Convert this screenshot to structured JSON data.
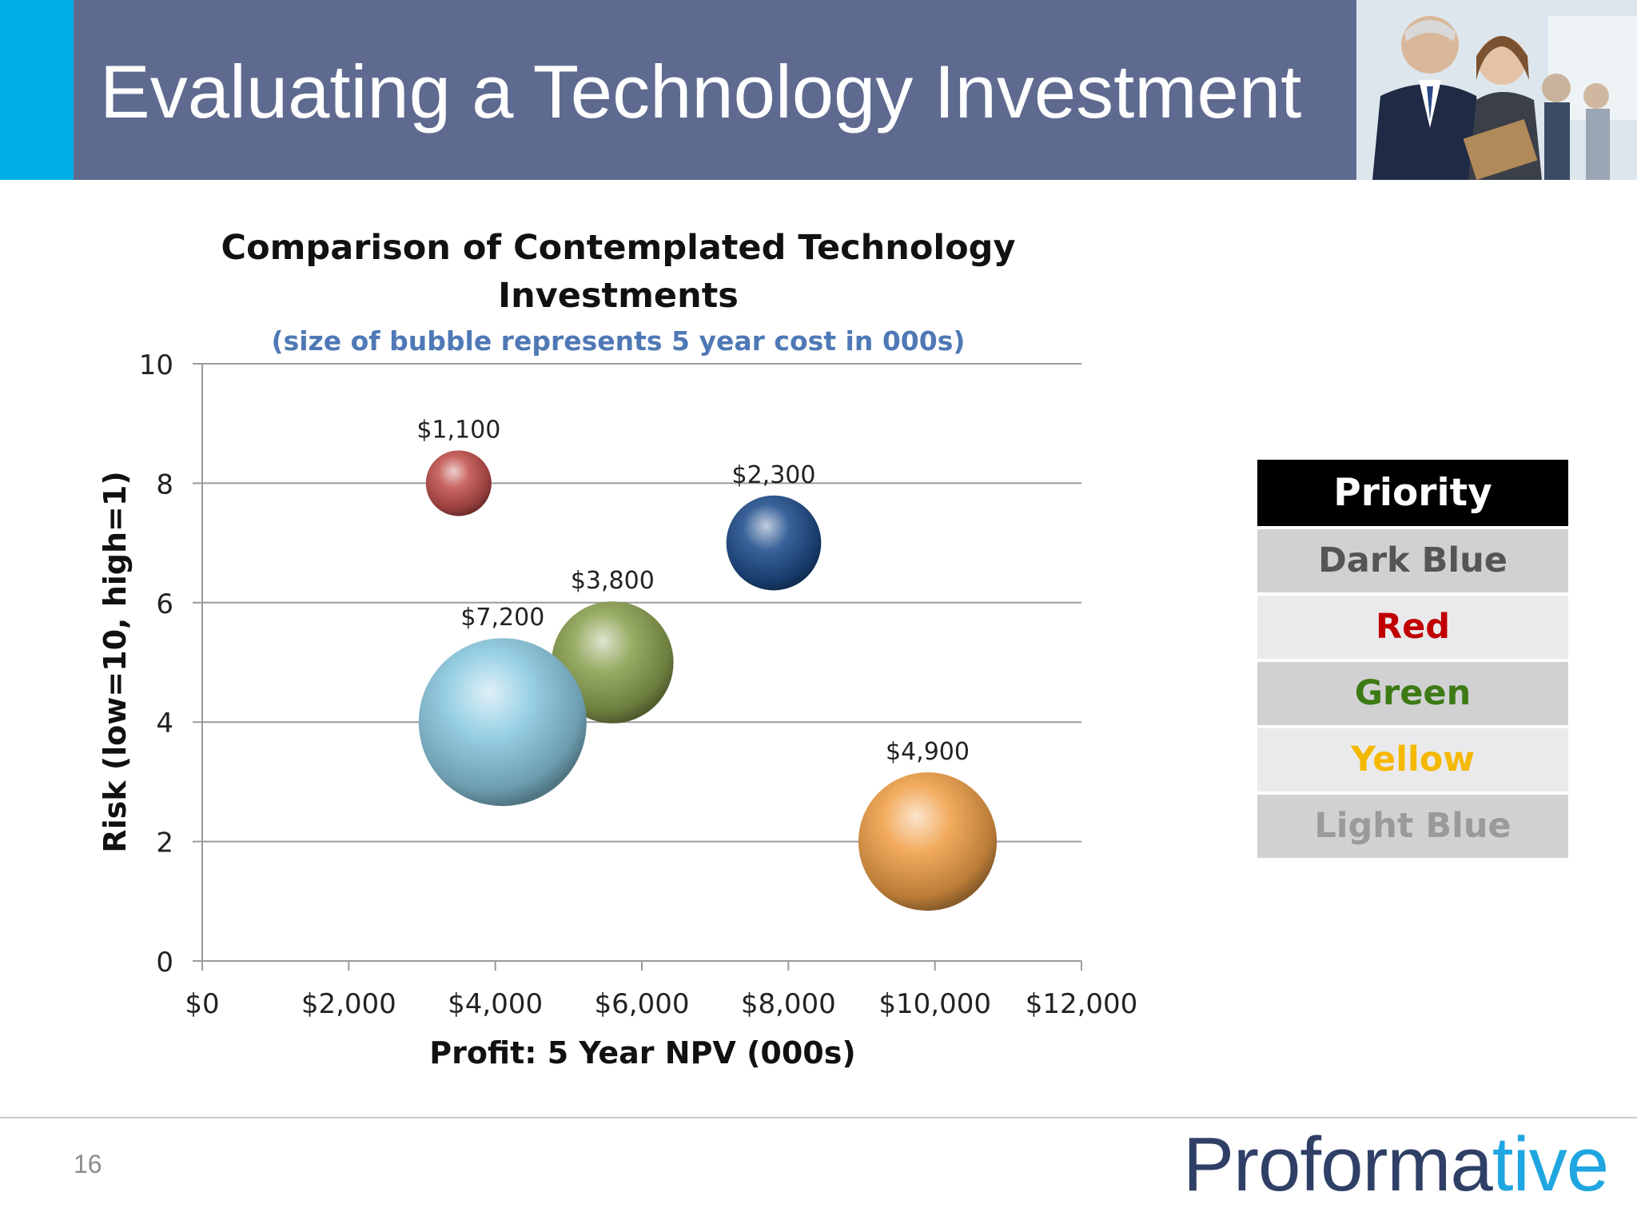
{
  "header": {
    "title": "Evaluating a Technology Investment",
    "accent_color": "#00aee6",
    "band_color": "#5f6a90"
  },
  "chart_data": {
    "type": "bubble",
    "title": "Comparison of Contemplated Technology Investments",
    "subtitle": "(size of bubble represents 5 year cost in 000s)",
    "xlabel": "Profit:  5 Year NPV (000s)",
    "ylabel": "Risk (low=10, high=1)",
    "xlim": [
      0,
      12000
    ],
    "ylim": [
      0,
      10
    ],
    "x_ticks": [
      "$0",
      "$2,000",
      "$4,000",
      "$6,000",
      "$8,000",
      "$10,000",
      "$12,000"
    ],
    "y_ticks": [
      "0",
      "2",
      "4",
      "6",
      "8",
      "10"
    ],
    "grid": "horizontal",
    "points": [
      {
        "label": "$1,100",
        "x": 3500,
        "y": 8,
        "size": 1100,
        "color": "#c0504d"
      },
      {
        "label": "$2,300",
        "x": 7800,
        "y": 7,
        "size": 2300,
        "color": "#1f4e8c"
      },
      {
        "label": "$3,800",
        "x": 5600,
        "y": 5,
        "size": 3800,
        "color": "#8aa150"
      },
      {
        "label": "$7,200",
        "x": 4100,
        "y": 4,
        "size": 7200,
        "color": "#8ccbe2"
      },
      {
        "label": "$4,900",
        "x": 9900,
        "y": 2,
        "size": 4900,
        "color": "#f0a048"
      }
    ]
  },
  "legend": {
    "header": "Priority",
    "items": [
      {
        "label": "Dark Blue",
        "color": "#555555"
      },
      {
        "label": "Red",
        "color": "#c00000"
      },
      {
        "label": "Green",
        "color": "#3d7a14"
      },
      {
        "label": "Yellow",
        "color": "#f5b800"
      },
      {
        "label": "Light Blue",
        "color": "#9a9a9a"
      }
    ]
  },
  "footer": {
    "page_number": "16",
    "logo_main": "Proforma",
    "logo_end": "tive"
  }
}
